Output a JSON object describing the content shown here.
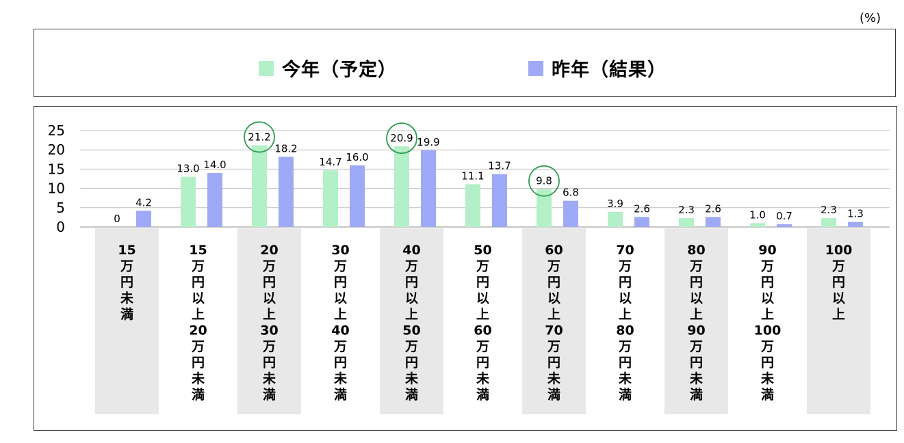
{
  "unit_label": "(%)",
  "legend": [
    {
      "label": "今年（予定）",
      "color": "#b3f0c8"
    },
    {
      "label": "昨年（結果）",
      "color": "#9ea9f7"
    }
  ],
  "highlight_color": "#2e9e4f",
  "category_band_color": "#e8e8e8",
  "chart_data": {
    "type": "bar",
    "categories": [
      "15万円未満",
      "15万円以上20万円未満",
      "20万円以上30万円未満",
      "30万円以上40万円未満",
      "40万円以上50万円未満",
      "50万円以上60万円未満",
      "60万円以上70万円未満",
      "70万円以上80万円未満",
      "80万円以上90万円未満",
      "90万円以上100万円未満",
      "100万円以上"
    ],
    "category_label_lines": [
      [
        "15",
        "万",
        "円",
        "未",
        "満"
      ],
      [
        "15",
        "万",
        "円",
        "以",
        "上",
        "20",
        "万",
        "円",
        "未",
        "満"
      ],
      [
        "20",
        "万",
        "円",
        "以",
        "上",
        "30",
        "万",
        "円",
        "未",
        "満"
      ],
      [
        "30",
        "万",
        "円",
        "以",
        "上",
        "40",
        "万",
        "円",
        "未",
        "満"
      ],
      [
        "40",
        "万",
        "円",
        "以",
        "上",
        "50",
        "万",
        "円",
        "未",
        "満"
      ],
      [
        "50",
        "万",
        "円",
        "以",
        "上",
        "60",
        "万",
        "円",
        "未",
        "満"
      ],
      [
        "60",
        "万",
        "円",
        "以",
        "上",
        "70",
        "万",
        "円",
        "未",
        "満"
      ],
      [
        "70",
        "万",
        "円",
        "以",
        "上",
        "80",
        "万",
        "円",
        "未",
        "満"
      ],
      [
        "80",
        "万",
        "円",
        "以",
        "上",
        "90",
        "万",
        "円",
        "未",
        "満"
      ],
      [
        "90",
        "万",
        "円",
        "以",
        "上",
        "100",
        "万",
        "円",
        "未",
        "満"
      ],
      [
        "100",
        "万",
        "円",
        "以",
        "上"
      ]
    ],
    "shaded_categories": [
      0,
      2,
      4,
      6,
      8,
      10
    ],
    "series": [
      {
        "name": "今年（予定）",
        "values": [
          0,
          13.0,
          21.2,
          14.7,
          20.9,
          11.1,
          9.8,
          3.9,
          2.3,
          1.0,
          2.3
        ],
        "labels": [
          "0",
          "13.0",
          "21.2",
          "14.7",
          "20.9",
          "11.1",
          "9.8",
          "3.9",
          "2.3",
          "1.0",
          "2.3"
        ]
      },
      {
        "name": "昨年（結果）",
        "values": [
          4.2,
          14.0,
          18.2,
          16.0,
          19.9,
          13.7,
          6.8,
          2.6,
          2.6,
          0.7,
          1.3
        ],
        "labels": [
          "4.2",
          "14.0",
          "18.2",
          "16.0",
          "19.9",
          "13.7",
          "6.8",
          "2.6",
          "2.6",
          "0.7",
          "1.3"
        ]
      }
    ],
    "highlighted_points": [
      {
        "series": 0,
        "category": 2
      },
      {
        "series": 0,
        "category": 4
      },
      {
        "series": 0,
        "category": 6
      }
    ],
    "yticks": [
      0,
      5,
      10,
      15,
      20,
      25
    ],
    "ylim": [
      0,
      25
    ],
    "grid": true,
    "legend_position": "top"
  }
}
